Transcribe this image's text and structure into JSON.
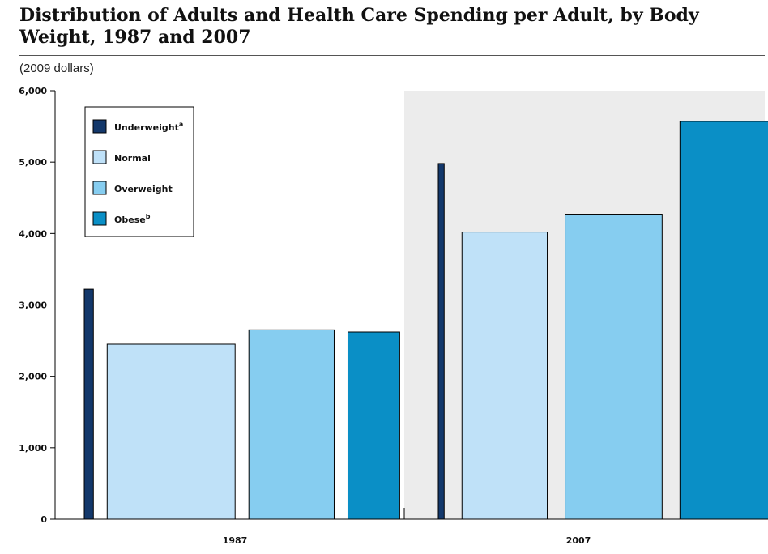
{
  "title": "Distribution of Adults and Health Care Spending per Adult, by Body Weight, 1987 and 2007",
  "unit_label": "(2009 dollars)",
  "chart_data": {
    "type": "bar",
    "categories": [
      "1987",
      "2007"
    ],
    "series": [
      {
        "name": "Underweight",
        "superscript": "a",
        "color": "#13386b",
        "values": [
          3220,
          4980
        ]
      },
      {
        "name": "Normal",
        "superscript": "",
        "color": "#bfe1f8",
        "values": [
          2450,
          4020
        ]
      },
      {
        "name": "Overweight",
        "superscript": "",
        "color": "#86cdf0",
        "values": [
          2650,
          4270
        ]
      },
      {
        "name": "Obese",
        "superscript": "b",
        "color": "#0a8fc6",
        "values": [
          2620,
          5570
        ]
      }
    ],
    "share_of_adults_percent": [
      [
        3,
        42,
        28,
        17
      ],
      [
        2,
        29,
        33,
        35
      ]
    ],
    "ylim": [
      0,
      6000
    ],
    "yticks": [
      "0",
      "1,000",
      "2,000",
      "3,000",
      "4,000",
      "5,000",
      "6,000"
    ],
    "ytick_values": [
      0,
      1000,
      2000,
      3000,
      4000,
      5000,
      6000
    ],
    "grid": false,
    "legend_position": "top-left",
    "panel_background_2007": "#ececec"
  }
}
